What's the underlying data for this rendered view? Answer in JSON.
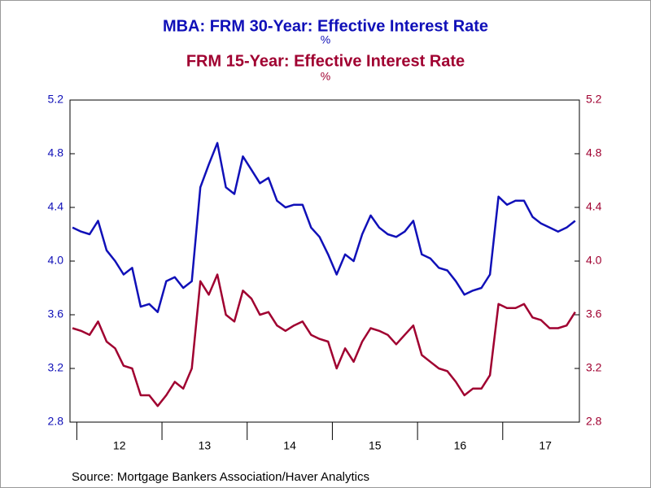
{
  "chart_data": {
    "type": "line",
    "title": "MBA: FRM 30-Year: Effective Interest Rate",
    "subtitle": "%",
    "title2": "FRM 15-Year: Effective Interest Rate",
    "subtitle2": "%",
    "source": "Source:  Mortgage Bankers Association/Haver Analytics",
    "x": [
      2011.95,
      2012.05,
      2012.15,
      2012.25,
      2012.35,
      2012.45,
      2012.55,
      2012.65,
      2012.75,
      2012.85,
      2012.95,
      2013.05,
      2013.15,
      2013.25,
      2013.35,
      2013.45,
      2013.55,
      2013.65,
      2013.75,
      2013.85,
      2013.95,
      2014.05,
      2014.15,
      2014.25,
      2014.35,
      2014.45,
      2014.55,
      2014.65,
      2014.75,
      2014.85,
      2014.95,
      2015.05,
      2015.15,
      2015.25,
      2015.35,
      2015.45,
      2015.55,
      2015.65,
      2015.75,
      2015.85,
      2015.95,
      2016.05,
      2016.15,
      2016.25,
      2016.35,
      2016.45,
      2016.55,
      2016.65,
      2016.75,
      2016.85,
      2016.95,
      2017.05,
      2017.15,
      2017.25,
      2017.35,
      2017.45,
      2017.55,
      2017.65,
      2017.75,
      2017.85
    ],
    "series": [
      {
        "name": "MBA: FRM 30-Year: Effective Interest Rate",
        "color": "#1010b8",
        "axis": "y",
        "values": [
          4.25,
          4.22,
          4.2,
          4.3,
          4.08,
          4.0,
          3.9,
          3.95,
          3.66,
          3.68,
          3.62,
          3.85,
          3.88,
          3.8,
          3.85,
          4.55,
          4.72,
          4.88,
          4.55,
          4.5,
          4.78,
          4.68,
          4.58,
          4.62,
          4.45,
          4.4,
          4.42,
          4.42,
          4.25,
          4.18,
          4.05,
          3.9,
          4.05,
          4.0,
          4.2,
          4.34,
          4.25,
          4.2,
          4.18,
          4.22,
          4.3,
          4.05,
          4.02,
          3.95,
          3.93,
          3.85,
          3.75,
          3.78,
          3.8,
          3.9,
          4.48,
          4.42,
          4.45,
          4.45,
          4.33,
          4.28,
          4.25,
          4.22,
          4.25,
          4.3
        ]
      },
      {
        "name": "FRM 15-Year: Effective Interest Rate",
        "color": "#a00030",
        "axis": "y2",
        "values": [
          3.5,
          3.48,
          3.45,
          3.55,
          3.4,
          3.35,
          3.22,
          3.2,
          3.0,
          3.0,
          2.92,
          3.0,
          3.1,
          3.05,
          3.2,
          3.85,
          3.75,
          3.9,
          3.6,
          3.55,
          3.78,
          3.72,
          3.6,
          3.62,
          3.52,
          3.48,
          3.52,
          3.55,
          3.45,
          3.42,
          3.4,
          3.2,
          3.35,
          3.25,
          3.4,
          3.5,
          3.48,
          3.45,
          3.38,
          3.45,
          3.52,
          3.3,
          3.25,
          3.2,
          3.18,
          3.1,
          3.0,
          3.05,
          3.05,
          3.15,
          3.68,
          3.65,
          3.65,
          3.68,
          3.58,
          3.56,
          3.5,
          3.5,
          3.52,
          3.62
        ]
      }
    ],
    "xlim": [
      2011.92,
      2017.9
    ],
    "xticks": [
      {
        "value": 2012,
        "label": "12"
      },
      {
        "value": 2013,
        "label": "13"
      },
      {
        "value": 2014,
        "label": "14"
      },
      {
        "value": 2015,
        "label": "15"
      },
      {
        "value": 2016,
        "label": "16"
      },
      {
        "value": 2017,
        "label": "17"
      }
    ],
    "ylim": [
      2.8,
      5.2
    ],
    "yticks": [
      2.8,
      3.2,
      3.6,
      {
        "value": 4,
        "label": "4.0"
      },
      4.4,
      4.8,
      5.2
    ],
    "y2lim": [
      2.8,
      5.2
    ],
    "y2ticks": [
      2.8,
      3.2,
      3.6,
      {
        "value": 4,
        "label": "4.0"
      },
      4.4,
      4.8,
      5.2
    ]
  }
}
